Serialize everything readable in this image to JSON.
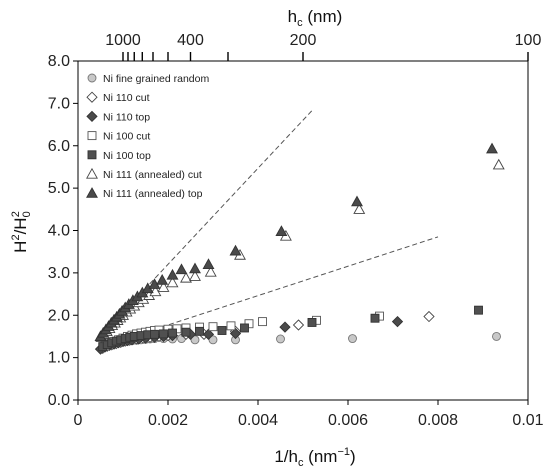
{
  "chart_data": {
    "type": "scatter",
    "xlabel": {
      "main": "1/h",
      "sub": "c",
      "units": " (nm",
      "sup": "−1",
      "close": ")"
    },
    "ylabel": {
      "H": "H",
      "sup2": "2",
      "slash": "/H",
      "sub0": "0",
      "sup2b": "2"
    },
    "top_axis_label": {
      "main": "h",
      "sub": "c",
      "units": " (nm)"
    },
    "xlim": [
      0,
      0.01
    ],
    "ylim": [
      0,
      8
    ],
    "x_ticks": [
      0,
      0.002,
      0.004,
      0.006,
      0.008,
      0.01
    ],
    "x_tick_labels": [
      "0",
      "0.002",
      "0.004",
      "0.006",
      "0.008",
      "0.01"
    ],
    "y_ticks": [
      0,
      1,
      2,
      3,
      4,
      5,
      6,
      7,
      8
    ],
    "y_tick_labels": [
      "0.0",
      "1.0",
      "2.0",
      "3.0",
      "4.0",
      "5.0",
      "6.0",
      "7.0",
      "8.0"
    ],
    "top_ticks_hc": [
      1000,
      900,
      800,
      700,
      600,
      500,
      400,
      300,
      200,
      100
    ],
    "top_tick_labels": [
      {
        "hc": 1000,
        "label": "1000"
      },
      {
        "hc": 400,
        "label": "400"
      },
      {
        "hc": 200,
        "label": "200"
      },
      {
        "hc": 100,
        "label": "100"
      }
    ],
    "grid": false,
    "legend_position": "top-left",
    "series": [
      {
        "name": "Ni fine grained random",
        "marker": "circle",
        "fill": "#c8c8c8",
        "stroke": "#777777",
        "points": [
          [
            0.00055,
            1.23
          ],
          [
            0.0006,
            1.25
          ],
          [
            0.00065,
            1.27
          ],
          [
            0.0007,
            1.29
          ],
          [
            0.00075,
            1.31
          ],
          [
            0.0008,
            1.33
          ],
          [
            0.00085,
            1.34
          ],
          [
            0.0009,
            1.35
          ],
          [
            0.00095,
            1.36
          ],
          [
            0.001,
            1.37
          ],
          [
            0.00105,
            1.38
          ],
          [
            0.0011,
            1.39
          ],
          [
            0.0012,
            1.4
          ],
          [
            0.0013,
            1.41
          ],
          [
            0.0014,
            1.42
          ],
          [
            0.0015,
            1.43
          ],
          [
            0.0016,
            1.44
          ],
          [
            0.0017,
            1.45
          ],
          [
            0.0019,
            1.45
          ],
          [
            0.0021,
            1.44
          ],
          [
            0.0023,
            1.45
          ],
          [
            0.0026,
            1.42
          ],
          [
            0.003,
            1.42
          ],
          [
            0.0035,
            1.42
          ],
          [
            0.0045,
            1.44
          ],
          [
            0.0061,
            1.45
          ],
          [
            0.0093,
            1.5
          ]
        ]
      },
      {
        "name": "Ni 110 cut",
        "marker": "diamond",
        "fill": "#ffffff",
        "stroke": "#444444",
        "points": [
          [
            0.00055,
            1.22
          ],
          [
            0.00065,
            1.27
          ],
          [
            0.00075,
            1.3
          ],
          [
            0.00085,
            1.33
          ],
          [
            0.00095,
            1.36
          ],
          [
            0.00105,
            1.39
          ],
          [
            0.00115,
            1.41
          ],
          [
            0.0013,
            1.44
          ],
          [
            0.00145,
            1.46
          ],
          [
            0.0016,
            1.48
          ],
          [
            0.0018,
            1.5
          ],
          [
            0.002,
            1.52
          ],
          [
            0.0024,
            1.55
          ],
          [
            0.0028,
            1.55
          ],
          [
            0.0035,
            1.62
          ],
          [
            0.0049,
            1.77
          ],
          [
            0.0078,
            1.97
          ]
        ]
      },
      {
        "name": "Ni 110 top",
        "marker": "diamond",
        "fill": "#4a4a4a",
        "stroke": "#333333",
        "points": [
          [
            0.0005,
            1.2
          ],
          [
            0.0006,
            1.25
          ],
          [
            0.0007,
            1.29
          ],
          [
            0.0008,
            1.32
          ],
          [
            0.0009,
            1.35
          ],
          [
            0.001,
            1.38
          ],
          [
            0.0011,
            1.4
          ],
          [
            0.0012,
            1.42
          ],
          [
            0.00135,
            1.44
          ],
          [
            0.0015,
            1.46
          ],
          [
            0.0017,
            1.48
          ],
          [
            0.0019,
            1.5
          ],
          [
            0.0021,
            1.52
          ],
          [
            0.0025,
            1.55
          ],
          [
            0.0029,
            1.55
          ],
          [
            0.0035,
            1.57
          ],
          [
            0.0046,
            1.72
          ],
          [
            0.0071,
            1.85
          ]
        ]
      },
      {
        "name": "Ni 100 cut",
        "marker": "square",
        "fill": "#ffffff",
        "stroke": "#555555",
        "points": [
          [
            0.0006,
            1.28
          ],
          [
            0.0007,
            1.34
          ],
          [
            0.0008,
            1.38
          ],
          [
            0.0009,
            1.42
          ],
          [
            0.001,
            1.46
          ],
          [
            0.0011,
            1.5
          ],
          [
            0.0012,
            1.53
          ],
          [
            0.0013,
            1.56
          ],
          [
            0.0014,
            1.58
          ],
          [
            0.0015,
            1.6
          ],
          [
            0.0016,
            1.62
          ],
          [
            0.0017,
            1.64
          ],
          [
            0.0018,
            1.65
          ],
          [
            0.002,
            1.67
          ],
          [
            0.0022,
            1.68
          ],
          [
            0.0024,
            1.7
          ],
          [
            0.0027,
            1.72
          ],
          [
            0.003,
            1.73
          ],
          [
            0.0034,
            1.75
          ],
          [
            0.0038,
            1.8
          ],
          [
            0.0041,
            1.85
          ],
          [
            0.0053,
            1.88
          ],
          [
            0.0067,
            1.98
          ]
        ]
      },
      {
        "name": "Ni 100 top",
        "marker": "square",
        "fill": "#505050",
        "stroke": "#333333",
        "points": [
          [
            0.00055,
            1.26
          ],
          [
            0.00065,
            1.31
          ],
          [
            0.00075,
            1.35
          ],
          [
            0.00085,
            1.39
          ],
          [
            0.00095,
            1.42
          ],
          [
            0.00105,
            1.45
          ],
          [
            0.00115,
            1.48
          ],
          [
            0.00125,
            1.5
          ],
          [
            0.0014,
            1.52
          ],
          [
            0.00155,
            1.54
          ],
          [
            0.0017,
            1.55
          ],
          [
            0.0019,
            1.56
          ],
          [
            0.0021,
            1.58
          ],
          [
            0.0024,
            1.6
          ],
          [
            0.0027,
            1.62
          ],
          [
            0.0032,
            1.64
          ],
          [
            0.0037,
            1.7
          ],
          [
            0.0052,
            1.83
          ],
          [
            0.0066,
            1.93
          ],
          [
            0.0089,
            2.12
          ]
        ]
      },
      {
        "name": "Ni 111 (annealed) cut",
        "marker": "triangle",
        "fill": "#ffffff",
        "stroke": "#444444",
        "points": [
          [
            0.00052,
            1.48
          ],
          [
            0.00058,
            1.55
          ],
          [
            0.00064,
            1.62
          ],
          [
            0.0007,
            1.69
          ],
          [
            0.00076,
            1.76
          ],
          [
            0.00082,
            1.82
          ],
          [
            0.00088,
            1.88
          ],
          [
            0.00094,
            1.94
          ],
          [
            0.001,
            2.0
          ],
          [
            0.00108,
            2.08
          ],
          [
            0.00116,
            2.15
          ],
          [
            0.00125,
            2.22
          ],
          [
            0.00135,
            2.3
          ],
          [
            0.00145,
            2.38
          ],
          [
            0.00158,
            2.47
          ],
          [
            0.00172,
            2.56
          ],
          [
            0.0019,
            2.66
          ],
          [
            0.0021,
            2.77
          ],
          [
            0.0024,
            2.88
          ],
          [
            0.0026,
            2.92
          ],
          [
            0.00295,
            3.02
          ],
          [
            0.0036,
            3.42
          ],
          [
            0.00462,
            3.87
          ],
          [
            0.00625,
            4.5
          ],
          [
            0.00935,
            5.55
          ]
        ]
      },
      {
        "name": "Ni 111 (annealed) top",
        "marker": "triangle",
        "fill": "#4a4a4a",
        "stroke": "#333333",
        "points": [
          [
            0.0005,
            1.5
          ],
          [
            0.00056,
            1.58
          ],
          [
            0.00062,
            1.66
          ],
          [
            0.00068,
            1.74
          ],
          [
            0.00074,
            1.82
          ],
          [
            0.0008,
            1.89
          ],
          [
            0.00086,
            1.96
          ],
          [
            0.00092,
            2.03
          ],
          [
            0.00098,
            2.1
          ],
          [
            0.00105,
            2.18
          ],
          [
            0.00113,
            2.26
          ],
          [
            0.00122,
            2.35
          ],
          [
            0.00132,
            2.44
          ],
          [
            0.00143,
            2.53
          ],
          [
            0.00155,
            2.63
          ],
          [
            0.0017,
            2.73
          ],
          [
            0.00187,
            2.83
          ],
          [
            0.0021,
            2.95
          ],
          [
            0.0023,
            3.08
          ],
          [
            0.0026,
            3.1
          ],
          [
            0.0029,
            3.2
          ],
          [
            0.0035,
            3.52
          ],
          [
            0.00452,
            3.98
          ],
          [
            0.0062,
            4.68
          ],
          [
            0.0092,
            5.93
          ]
        ]
      }
    ],
    "reference_lines": [
      {
        "points": [
          [
            0.0005,
            1.5
          ],
          [
            0.0052,
            6.83
          ]
        ],
        "style": "dashed"
      },
      {
        "points": [
          [
            0.0005,
            1.25
          ],
          [
            0.008,
            3.85
          ]
        ],
        "style": "dashed"
      }
    ]
  }
}
